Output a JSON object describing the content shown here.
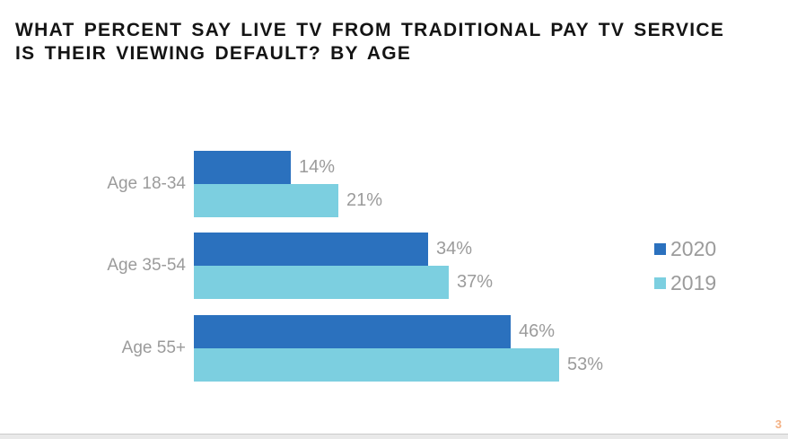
{
  "title": {
    "line1": "WHAT PERCENT SAY LIVE TV FROM TRADITIONAL PAY TV SERVICE",
    "line2": "IS THEIR VIEWING DEFAULT? BY AGE"
  },
  "page_number": "3",
  "colors": {
    "series_2020": "#2B71BE",
    "series_2019": "#7CCFE0",
    "text_gray": "#9B9B9B",
    "title_text": "#141414",
    "page_number": "#F4B183",
    "footer_strip": "#E9E9E9"
  },
  "chart_data": {
    "type": "bar",
    "orientation": "horizontal",
    "title": "WHAT PERCENT SAY LIVE TV FROM TRADITIONAL PAY TV SERVICE IS THEIR VIEWING DEFAULT? BY AGE",
    "categories": [
      "Age 18-34",
      "Age 35-54",
      "Age 55+"
    ],
    "series": [
      {
        "name": "2020",
        "color": "#2B71BE",
        "values": [
          14,
          34,
          46
        ]
      },
      {
        "name": "2019",
        "color": "#7CCFE0",
        "values": [
          21,
          37,
          53
        ]
      }
    ],
    "value_suffix": "%",
    "data_labels": true,
    "xlim": [
      0,
      60
    ],
    "grid": false,
    "legend_position": "right"
  }
}
